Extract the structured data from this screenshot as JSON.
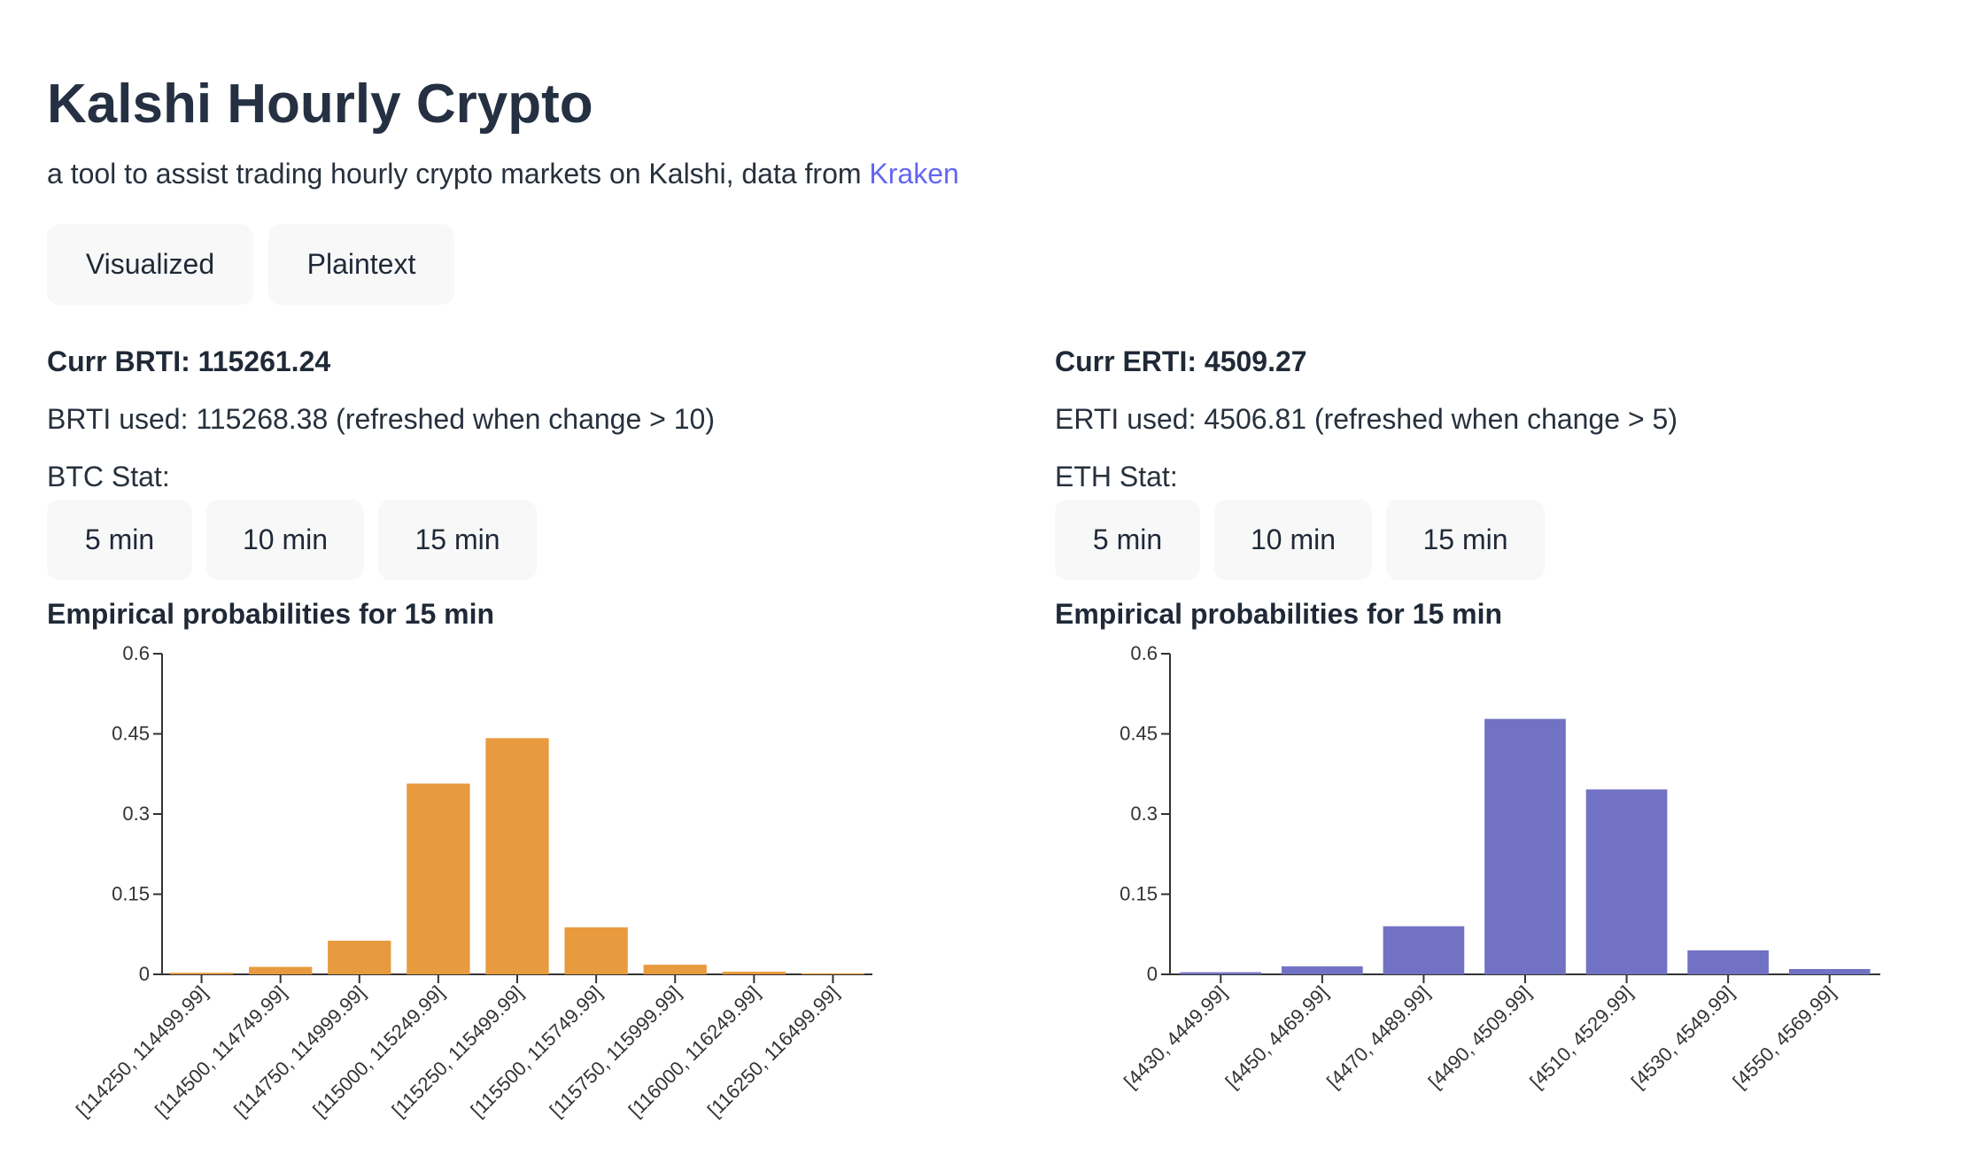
{
  "header": {
    "title": "Kalshi Hourly Crypto",
    "subtitle": "a tool to assist trading hourly crypto markets on Kalshi, data from ",
    "subtitle_link": "Kraken"
  },
  "view_buttons": [
    "Visualized",
    "Plaintext"
  ],
  "btc": {
    "curr": "Curr BRTI: 115261.24",
    "used": "BRTI used: 115268.38 (refreshed when change > 10)",
    "stat_label": "BTC Stat:",
    "stat_buttons": [
      "5 min",
      "10 min",
      "15 min"
    ],
    "chart_title": "Empirical probabilities for 15 min"
  },
  "eth": {
    "curr": "Curr ERTI: 4509.27",
    "used": "ERTI used: 4506.81 (refreshed when change > 5)",
    "stat_label": "ETH Stat:",
    "stat_buttons": [
      "5 min",
      "10 min",
      "15 min"
    ],
    "chart_title": "Empirical probabilities for 15 min"
  },
  "colors": {
    "btc_bar": "#e89a3e",
    "eth_bar": "#7272c4",
    "link": "#6366f1"
  },
  "chart_data": [
    {
      "type": "bar",
      "title": "Empirical probabilities for 15 min",
      "categories": [
        "[114250, 114499.99]",
        "[114500, 114749.99]",
        "[114750, 114999.99]",
        "[115000, 115249.99]",
        "[115250, 115499.99]",
        "[115500, 115749.99]",
        "[115750, 115999.99]",
        "[116000, 116249.99]",
        "[116250, 116499.99]"
      ],
      "values": [
        0.003,
        0.014,
        0.063,
        0.357,
        0.442,
        0.088,
        0.018,
        0.005,
        0.002
      ],
      "ylim": [
        0,
        0.6
      ],
      "yticks": [
        "0",
        "0.15",
        "0.3",
        "0.45",
        "0.6"
      ],
      "color": "#e89a3e"
    },
    {
      "type": "bar",
      "title": "Empirical probabilities for 15 min",
      "categories": [
        "[4430, 4449.99]",
        "[4450, 4469.99]",
        "[4470, 4489.99]",
        "[4490, 4509.99]",
        "[4510, 4529.99]",
        "[4530, 4549.99]",
        "[4550, 4569.99]"
      ],
      "values": [
        0.004,
        0.015,
        0.09,
        0.478,
        0.346,
        0.045,
        0.01
      ],
      "ylim": [
        0,
        0.6
      ],
      "yticks": [
        "0",
        "0.15",
        "0.3",
        "0.45",
        "0.6"
      ],
      "color": "#7272c4"
    }
  ]
}
